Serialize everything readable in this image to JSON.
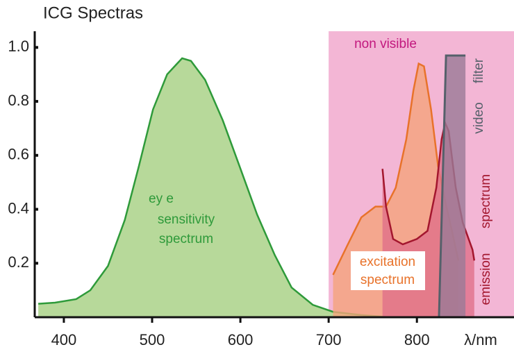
{
  "chart_data": {
    "type": "area",
    "title": "ICG Spectras",
    "x_label": "λ/nm",
    "xlim": [
      367,
      910
    ],
    "ylim": [
      0,
      1.06
    ],
    "xticks": [
      400,
      500,
      600,
      700,
      800
    ],
    "yticks": [
      0.2,
      0.4,
      0.6,
      0.8,
      {
        "value": 1,
        "label": "1.0"
      }
    ],
    "region": {
      "label": "non visible",
      "from": 700,
      "color": "#f3b6d5",
      "text_color": "#c2187e"
    },
    "series": [
      {
        "label": [
          "ey e",
          "sensitivity",
          "spectrum"
        ],
        "color": "#2e9a3a",
        "fill": "#b7d99a",
        "x": [
          371,
          390,
          414,
          430,
          450,
          469,
          485,
          501,
          517,
          534,
          544,
          560,
          580,
          599,
          619,
          639,
          658,
          682,
          705,
          737,
          769
        ],
        "values": [
          0.05,
          0.054,
          0.067,
          0.1,
          0.19,
          0.36,
          0.56,
          0.77,
          0.9,
          0.96,
          0.95,
          0.88,
          0.73,
          0.56,
          0.38,
          0.23,
          0.11,
          0.046,
          0.02,
          0.008,
          0
        ]
      },
      {
        "label": [
          "excitation",
          "spectrum"
        ],
        "color": "#e8722a",
        "fill": "#f4a47c",
        "x": [
          705,
          721,
          737,
          753,
          765,
          776,
          788,
          796,
          802,
          808,
          816,
          824,
          832,
          839,
          847
        ],
        "values": [
          0.157,
          0.265,
          0.37,
          0.41,
          0.41,
          0.48,
          0.66,
          0.84,
          0.94,
          0.93,
          0.77,
          0.56,
          0.43,
          0.33,
          0.21
        ]
      },
      {
        "label": [
          "emission",
          "spectrum"
        ],
        "color": "#a3162e",
        "fill": "#e0708a",
        "x": [
          761,
          765,
          773,
          784,
          800,
          812,
          822,
          828,
          832,
          836,
          844,
          852,
          863,
          865
        ],
        "values": [
          0.55,
          0.41,
          0.29,
          0.27,
          0.29,
          0.32,
          0.48,
          0.66,
          0.72,
          0.69,
          0.48,
          0.35,
          0.25,
          0.21
        ]
      },
      {
        "label": [
          "video",
          "filter"
        ],
        "color": "#55606a",
        "fill": "#9a7a96",
        "x": [
          825,
          833,
          855
        ],
        "values": [
          0,
          0.97,
          0.97
        ]
      }
    ]
  }
}
